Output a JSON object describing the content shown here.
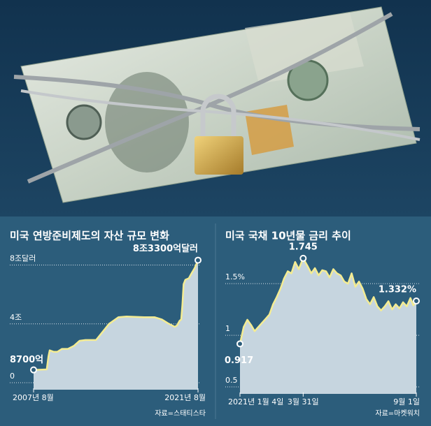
{
  "chart_data": [
    {
      "type": "area",
      "title": "미국 연방준비제도의 자산 규모 변화",
      "source": "자료=스태티스타",
      "x": [
        2007.58,
        2008.7,
        2008.85,
        2008.95,
        2009.3,
        2009.6,
        2010.0,
        2010.5,
        2011.0,
        2011.5,
        2012.0,
        2012.9,
        2013.5,
        2014.0,
        2014.8,
        2015.5,
        2017.0,
        2017.9,
        2018.5,
        2019.0,
        2019.6,
        2019.8,
        2020.0,
        2020.15,
        2020.25,
        2020.35,
        2020.5,
        2020.8,
        2021.0,
        2021.3,
        2021.58
      ],
      "values": [
        0.87,
        0.9,
        1.8,
        2.2,
        2.1,
        2.1,
        2.3,
        2.3,
        2.5,
        2.85,
        2.9,
        2.9,
        3.5,
        4.0,
        4.45,
        4.5,
        4.45,
        4.45,
        4.3,
        4.05,
        3.8,
        3.9,
        4.2,
        4.3,
        5.3,
        6.7,
        7.0,
        7.1,
        7.4,
        7.8,
        8.33
      ],
      "value_labels": [
        "8700억",
        null,
        null,
        null,
        null,
        null,
        null,
        null,
        null,
        null,
        null,
        null,
        null,
        null,
        null,
        null,
        null,
        null,
        null,
        null,
        null,
        null,
        null,
        null,
        null,
        null,
        null,
        null,
        null,
        null,
        "8조3300억달러"
      ],
      "color": "#f4ec92",
      "fill_color": "#c6d5df",
      "xlim": [
        2007.58,
        2021.58
      ],
      "xticks": [
        {
          "value": 2007.58,
          "label": "2007년 8월"
        },
        {
          "value": 2021.58,
          "label": "2021년 8월"
        }
      ],
      "ylim": [
        0,
        8.5
      ],
      "yticks": [
        {
          "value": 8,
          "label": "8조달러"
        },
        {
          "value": 4,
          "label": "4조"
        },
        0
      ],
      "grid": true
    },
    {
      "type": "area",
      "title": "미국 국채 10년물 금리 추이",
      "source": "자료=마켓워치",
      "x": [
        0,
        5,
        10,
        15,
        20,
        25,
        30,
        35,
        40,
        45,
        50,
        55,
        60,
        65,
        70,
        75,
        80,
        86,
        92,
        97,
        102,
        107,
        112,
        117,
        122,
        127,
        132,
        137,
        142,
        147,
        152,
        157,
        162,
        167,
        172,
        177,
        182,
        187,
        192,
        197,
        202,
        207,
        212,
        217,
        222,
        227,
        232,
        236,
        240
      ],
      "values": [
        0.917,
        1.08,
        1.15,
        1.1,
        1.04,
        1.08,
        1.12,
        1.16,
        1.2,
        1.3,
        1.37,
        1.45,
        1.55,
        1.62,
        1.6,
        1.71,
        1.64,
        1.745,
        1.67,
        1.6,
        1.65,
        1.58,
        1.63,
        1.62,
        1.56,
        1.64,
        1.6,
        1.58,
        1.52,
        1.5,
        1.6,
        1.47,
        1.52,
        1.45,
        1.35,
        1.3,
        1.37,
        1.28,
        1.24,
        1.28,
        1.33,
        1.25,
        1.3,
        1.26,
        1.32,
        1.28,
        1.36,
        1.29,
        1.332
      ],
      "value_labels": [
        "0.917",
        null,
        null,
        null,
        null,
        null,
        null,
        null,
        null,
        null,
        null,
        null,
        null,
        null,
        null,
        null,
        null,
        "1.745",
        null,
        null,
        null,
        null,
        null,
        null,
        null,
        null,
        null,
        null,
        null,
        null,
        null,
        null,
        null,
        null,
        null,
        null,
        null,
        null,
        null,
        null,
        null,
        null,
        null,
        null,
        null,
        null,
        null,
        null,
        "1.332%"
      ],
      "color": "#f4ec92",
      "fill_color": "#c6d5df",
      "xlim": [
        0,
        240
      ],
      "xticks": [
        {
          "value": 0,
          "label": "2021년 1월 4일"
        },
        {
          "value": 86,
          "label": "3월 31일"
        },
        {
          "value": 240,
          "label": "9월 1일"
        }
      ],
      "ylim": [
        0.5,
        1.9
      ],
      "yticks": [
        {
          "value": 1.5,
          "label": "1.5%"
        },
        1,
        0.5
      ],
      "grid": true
    }
  ]
}
